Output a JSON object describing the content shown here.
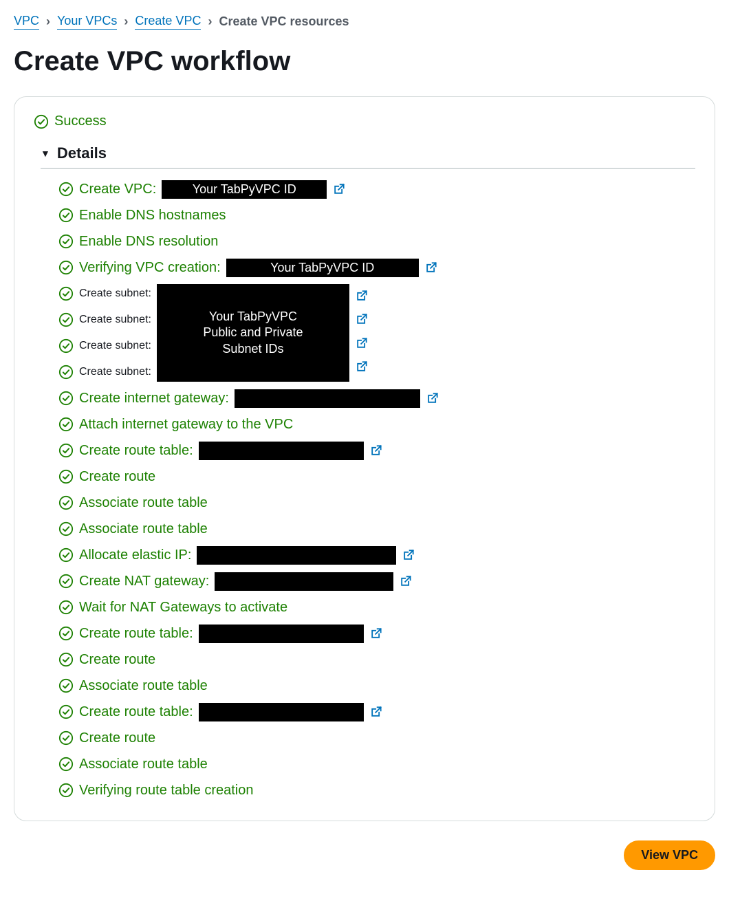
{
  "colors": {
    "link_blue": "#0073bb",
    "success_green": "#1d8102",
    "text_dark": "#16191f",
    "text_muted": "#545b64",
    "border_gray": "#d5dbdb",
    "divider_gray": "#aab7b8",
    "redact_black": "#000000",
    "button_orange": "#ff9900",
    "background": "#ffffff"
  },
  "breadcrumb": {
    "items": [
      {
        "label": "VPC",
        "link": true
      },
      {
        "label": "Your VPCs",
        "link": true
      },
      {
        "label": "Create VPC",
        "link": true
      },
      {
        "label": "Create VPC resources",
        "link": false
      }
    ],
    "separator": "›"
  },
  "page_title": "Create VPC workflow",
  "status": {
    "label": "Success",
    "icon": "check-circle"
  },
  "details": {
    "header": "Details",
    "caret": "▼",
    "subnet_redaction": {
      "line1": "Your TabPyVPC",
      "line2": "Public and Private",
      "line3": "Subnet IDs"
    },
    "items": [
      {
        "label": "Create VPC:",
        "redact_text": "Your TabPyVPC ID",
        "redact_width": 240,
        "external": true
      },
      {
        "label": "Enable DNS hostnames"
      },
      {
        "label": "Enable DNS resolution"
      },
      {
        "label": "Verifying VPC creation:",
        "redact_text": "Your TabPyVPC ID",
        "redact_width": 280,
        "external": true
      },
      {
        "subnet_group": true,
        "rows": [
          {
            "label": "Create subnet:",
            "external": true
          },
          {
            "label": "Create subnet:",
            "external": true
          },
          {
            "label": "Create subnet:",
            "external": true
          },
          {
            "label": "Create subnet:",
            "external": true
          }
        ]
      },
      {
        "label": "Create internet gateway:",
        "redact_blank": true,
        "redact_width": 270,
        "external": true
      },
      {
        "label": "Attach internet gateway to the VPC"
      },
      {
        "label": "Create route table:",
        "redact_blank": true,
        "redact_width": 240,
        "external": true
      },
      {
        "label": "Create route"
      },
      {
        "label": "Associate route table"
      },
      {
        "label": "Associate route table"
      },
      {
        "label": "Allocate elastic IP:",
        "redact_blank": true,
        "redact_width": 290,
        "external": true
      },
      {
        "label": "Create NAT gateway:",
        "redact_blank": true,
        "redact_width": 260,
        "external": true
      },
      {
        "label": "Wait for NAT Gateways to activate"
      },
      {
        "label": "Create route table:",
        "redact_blank": true,
        "redact_width": 240,
        "external": true
      },
      {
        "label": "Create route"
      },
      {
        "label": "Associate route table"
      },
      {
        "label": "Create route table:",
        "redact_blank": true,
        "redact_width": 240,
        "external": true
      },
      {
        "label": "Create route"
      },
      {
        "label": "Associate route table"
      },
      {
        "label": "Verifying route table creation"
      }
    ]
  },
  "footer": {
    "button_label": "View VPC"
  }
}
